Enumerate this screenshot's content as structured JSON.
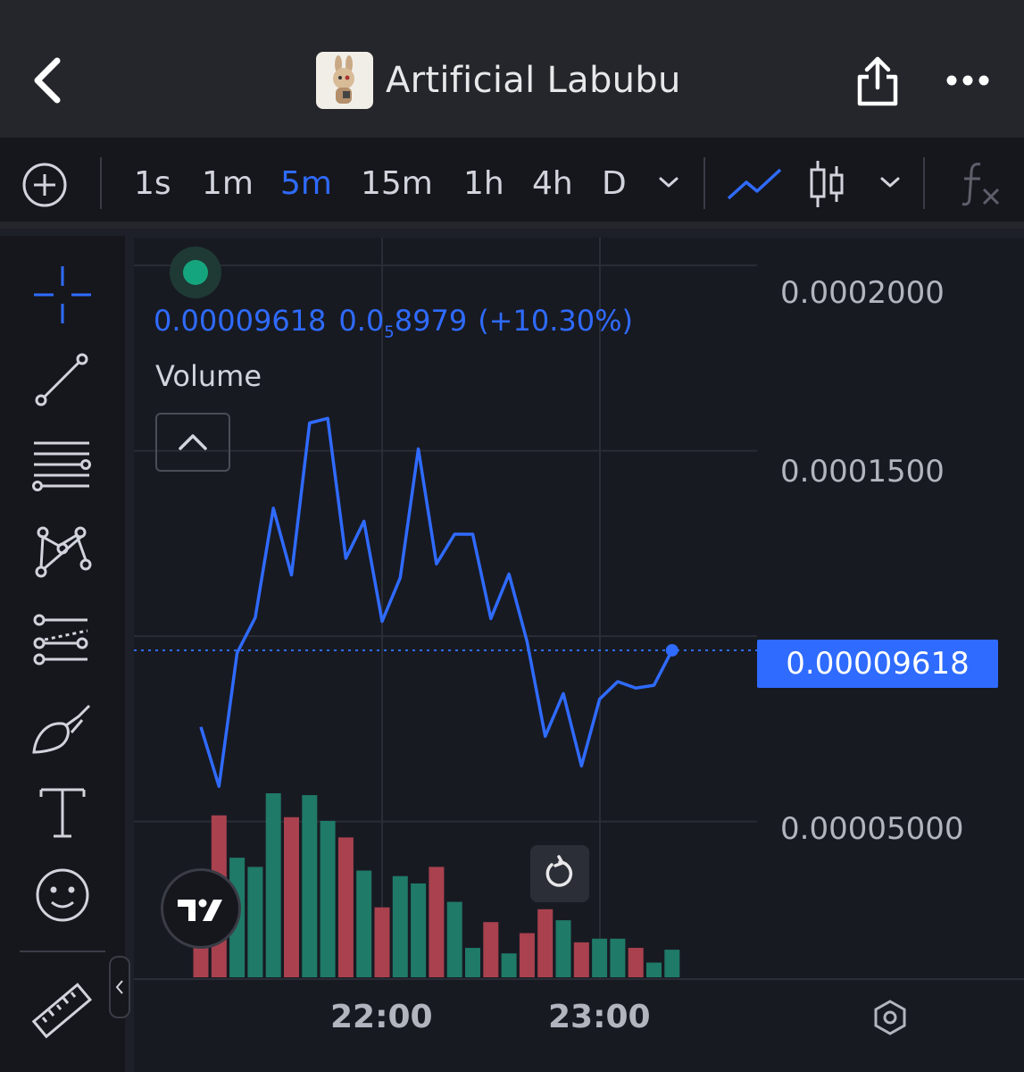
{
  "header": {
    "title": "Artificial Labubu",
    "icons": [
      "back-arrow-icon",
      "share-icon",
      "more-icon"
    ]
  },
  "toolbar": {
    "timeframes": [
      "1s",
      "1m",
      "5m",
      "15m",
      "1h",
      "4h",
      "D"
    ],
    "active_timeframe": "5m",
    "icons": [
      "add-icon",
      "chevron-down-icon",
      "line-chart-icon",
      "candlestick-icon",
      "indicators-icon"
    ]
  },
  "tools": [
    "crosshair-icon",
    "trend-line-icon",
    "fib-lines-icon",
    "pattern-icon",
    "projection-icon",
    "brush-icon",
    "text-icon",
    "emoji-icon",
    "ruler-icon"
  ],
  "legend": {
    "price": "0.00009618",
    "change_prefix": "0.0",
    "change_sub": "5",
    "change_suffix": "8979",
    "change_pct": "(+10.30%)",
    "volume_label": "Volume"
  },
  "colors": {
    "accent": "#2f6bff",
    "up": "#1f7a68",
    "down": "#a9414e",
    "background": "#181a22"
  },
  "chart_data": {
    "type": "line",
    "y_tick_labels": [
      "0.0002000",
      "0.0001500",
      "0.00005000"
    ],
    "y_ticks": [
      0.0002,
      0.00015,
      5e-05
    ],
    "last_price_label": "0.00009618",
    "last_price": 9.618e-05,
    "ylim": [
      7.5e-06,
      0.0002075
    ],
    "x_tick_labels": [
      "22:00",
      "23:00"
    ],
    "price_series": [
      7.55e-05,
      5.95e-05,
      9.55e-05,
      0.000105,
      0.0001345,
      0.0001165,
      0.0001575,
      0.00015875,
      0.000121,
      0.000131,
      0.000104,
      0.00011575,
      0.0001505,
      0.0001195,
      0.0001275,
      0.0001275,
      0.00010475,
      0.00011675,
      9.85e-05,
      7.3e-05,
      8.45e-05,
      6.5e-05,
      8.3e-05,
      8.775e-05,
      8.6e-05,
      8.675e-05,
      9.618e-05
    ],
    "volume": [
      {
        "v": 0.32,
        "dir": "down"
      },
      {
        "v": 0.88,
        "dir": "down"
      },
      {
        "v": 0.65,
        "dir": "up"
      },
      {
        "v": 0.6,
        "dir": "up"
      },
      {
        "v": 1.0,
        "dir": "up"
      },
      {
        "v": 0.87,
        "dir": "down"
      },
      {
        "v": 0.99,
        "dir": "up"
      },
      {
        "v": 0.85,
        "dir": "up"
      },
      {
        "v": 0.76,
        "dir": "down"
      },
      {
        "v": 0.58,
        "dir": "up"
      },
      {
        "v": 0.38,
        "dir": "down"
      },
      {
        "v": 0.55,
        "dir": "up"
      },
      {
        "v": 0.51,
        "dir": "up"
      },
      {
        "v": 0.6,
        "dir": "down"
      },
      {
        "v": 0.41,
        "dir": "up"
      },
      {
        "v": 0.16,
        "dir": "up"
      },
      {
        "v": 0.3,
        "dir": "down"
      },
      {
        "v": 0.13,
        "dir": "up"
      },
      {
        "v": 0.24,
        "dir": "down"
      },
      {
        "v": 0.37,
        "dir": "down"
      },
      {
        "v": 0.31,
        "dir": "up"
      },
      {
        "v": 0.19,
        "dir": "down"
      },
      {
        "v": 0.21,
        "dir": "up"
      },
      {
        "v": 0.21,
        "dir": "up"
      },
      {
        "v": 0.16,
        "dir": "down"
      },
      {
        "v": 0.08,
        "dir": "up"
      },
      {
        "v": 0.15,
        "dir": "up"
      }
    ]
  }
}
